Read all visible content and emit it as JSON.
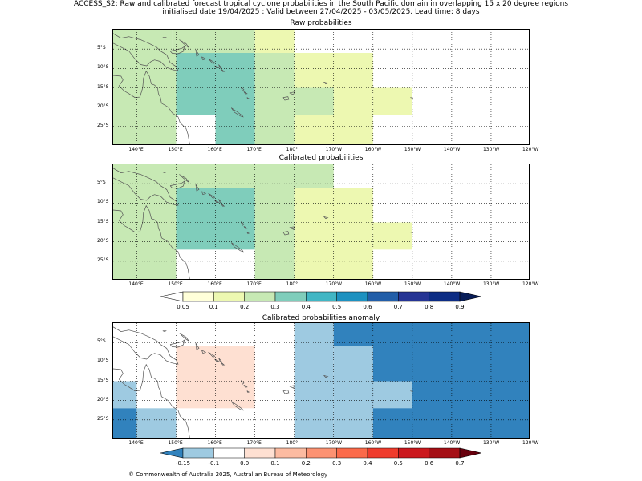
{
  "title": {
    "line1": "ACCESS_S2: Raw and calibrated forecast tropical cyclone probabilities in the South Pacific domain in overlapping 15 x 20 degree regions",
    "line2": "initialised date 19/04/2025 :  Valid between 27/04/2025 - 03/05/2025. Lead time: 8 days"
  },
  "panels": [
    {
      "id": "raw",
      "title": "Raw probabilities"
    },
    {
      "id": "cal",
      "title": "Calibrated probabilities"
    },
    {
      "id": "anom",
      "title": "Calibrated probabilities anomaly"
    }
  ],
  "lon_labels": [
    "140°E",
    "150°E",
    "160°E",
    "170°E",
    "180°",
    "170°W",
    "160°W",
    "150°W",
    "140°W",
    "130°W",
    "120°W"
  ],
  "lat_labels": [
    "5°S",
    "10°S",
    "15°S",
    "20°S",
    "25°S"
  ],
  "colorbar_prob": {
    "ticks": [
      "0.05",
      "0.1",
      "0.2",
      "0.3",
      "0.4",
      "0.5",
      "0.6",
      "0.7",
      "0.8",
      "0.9"
    ],
    "colors": [
      "#ffffff",
      "#ffffd9",
      "#edf8b1",
      "#c7e9b4",
      "#7fcdbb",
      "#41b6c4",
      "#1d91c0",
      "#225ea8",
      "#253494",
      "#081d58"
    ]
  },
  "colorbar_anom": {
    "ticks": [
      "-0.15",
      "-0.1",
      "0.0",
      "0.1",
      "0.2",
      "0.3",
      "0.4",
      "0.5",
      "0.6",
      "0.7"
    ],
    "colors": [
      "#3182bd",
      "#9ecae1",
      "#ffffff",
      "#fee0d2",
      "#fcbba1",
      "#fc9272",
      "#fb6a4a",
      "#ef3b2c",
      "#cb181d",
      "#a50f15"
    ]
  },
  "chart_data": [
    {
      "type": "heatmap",
      "title": "Raw probabilities",
      "x_range_deg_lon": [
        134,
        240
      ],
      "y_range_deg_lat": [
        0,
        -30
      ],
      "cells": [
        {
          "lon": [
            134,
            149
          ],
          "lat": [
            0,
            -6
          ],
          "value": 0.2
        },
        {
          "lon": [
            149,
            170
          ],
          "lat": [
            0,
            -6
          ],
          "value": 0.2
        },
        {
          "lon": [
            170,
            180
          ],
          "lat": [
            0,
            -6
          ],
          "value": 0.1
        },
        {
          "lon": [
            134,
            150
          ],
          "lat": [
            -6,
            -30
          ],
          "value": 0.2
        },
        {
          "lon": [
            150,
            160
          ],
          "lat": [
            -6,
            -22
          ],
          "value": 0.3
        },
        {
          "lon": [
            160,
            170
          ],
          "lat": [
            -6,
            -30
          ],
          "value": 0.3
        },
        {
          "lon": [
            170,
            180
          ],
          "lat": [
            -6,
            -30
          ],
          "value": 0.2
        },
        {
          "lon": [
            180,
            200
          ],
          "lat": [
            -6,
            -30
          ],
          "value": 0.1
        },
        {
          "lon": [
            180,
            190
          ],
          "lat": [
            -15,
            -22
          ],
          "value": 0.2
        },
        {
          "lon": [
            200,
            210
          ],
          "lat": [
            -15,
            -22
          ],
          "value": 0.1
        }
      ]
    },
    {
      "type": "heatmap",
      "title": "Calibrated probabilities",
      "x_range_deg_lon": [
        134,
        240
      ],
      "y_range_deg_lat": [
        0,
        -30
      ],
      "cells": [
        {
          "lon": [
            134,
            190
          ],
          "lat": [
            0,
            -6
          ],
          "value": 0.2
        },
        {
          "lon": [
            150,
            170
          ],
          "lat": [
            -6,
            -22
          ],
          "value": 0.3
        },
        {
          "lon": [
            134,
            150
          ],
          "lat": [
            -6,
            -30
          ],
          "value": 0.2
        },
        {
          "lon": [
            170,
            180
          ],
          "lat": [
            -6,
            -30
          ],
          "value": 0.2
        },
        {
          "lon": [
            180,
            200
          ],
          "lat": [
            -6,
            -30
          ],
          "value": 0.1
        },
        {
          "lon": [
            200,
            210
          ],
          "lat": [
            -15,
            -22
          ],
          "value": 0.1
        }
      ]
    },
    {
      "type": "heatmap",
      "title": "Calibrated probabilities anomaly",
      "x_range_deg_lon": [
        134,
        240
      ],
      "y_range_deg_lat": [
        0,
        -30
      ],
      "cells": [
        {
          "lon": [
            150,
            170
          ],
          "lat": [
            -6,
            -22
          ],
          "value": 0.05
        },
        {
          "lon": [
            180,
            190
          ],
          "lat": [
            0,
            -30
          ],
          "value": -0.1
        },
        {
          "lon": [
            190,
            240
          ],
          "lat": [
            0,
            -6
          ],
          "value": -0.15
        },
        {
          "lon": [
            190,
            200
          ],
          "lat": [
            -6,
            -30
          ],
          "value": -0.1
        },
        {
          "lon": [
            200,
            240
          ],
          "lat": [
            -6,
            -30
          ],
          "value": -0.15
        },
        {
          "lon": [
            200,
            210
          ],
          "lat": [
            -15,
            -22
          ],
          "value": -0.1
        },
        {
          "lon": [
            134,
            140
          ],
          "lat": [
            -15,
            -22
          ],
          "value": -0.1
        },
        {
          "lon": [
            134,
            140
          ],
          "lat": [
            -22,
            -30
          ],
          "value": -0.15
        },
        {
          "lon": [
            140,
            150
          ],
          "lat": [
            -22,
            -30
          ],
          "value": -0.1
        }
      ]
    }
  ],
  "copyright": "© Commonwealth of Australia 2025, Australian Bureau of Meteorology"
}
